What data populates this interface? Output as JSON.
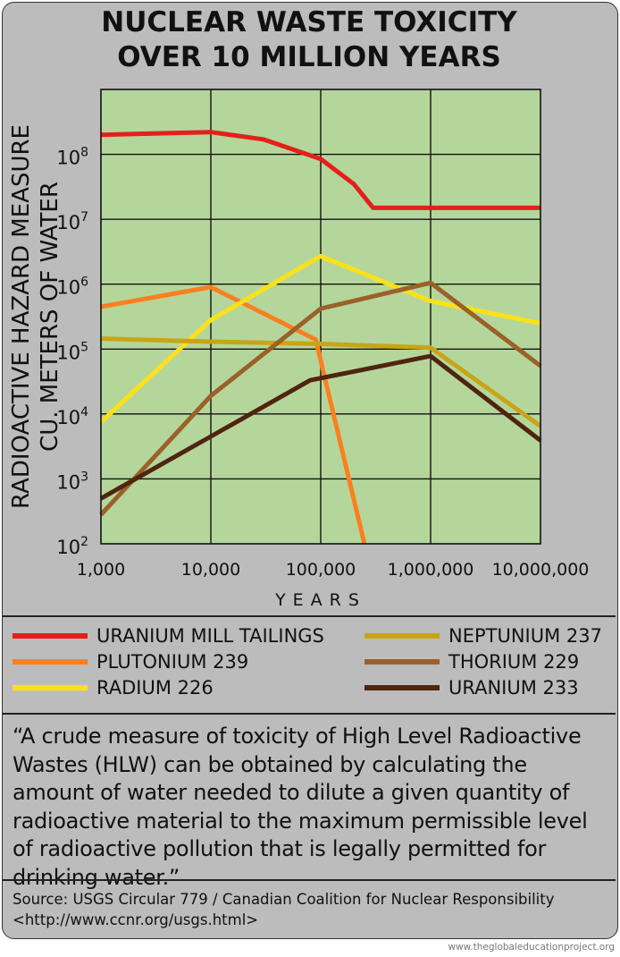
{
  "title_lines": [
    "NUCLEAR WASTE TOXICITY",
    "OVER 10 MILLION YEARS"
  ],
  "chart_data": {
    "type": "line",
    "title": "NUCLEAR WASTE TOXICITY OVER 10 MILLION YEARS",
    "xlabel": "YEARS",
    "ylabel_lines": [
      "RADIOACTIVE HAZARD MEASURE",
      "CU. METERS OF WATER"
    ],
    "x_scale": "log",
    "y_scale": "log",
    "xlim": [
      1000,
      10000000
    ],
    "ylim": [
      100,
      1000000000
    ],
    "x_ticks": [
      1000,
      10000,
      100000,
      1000000,
      10000000
    ],
    "x_tick_labels": [
      "1,000",
      "10,000",
      "100,000",
      "1,000,000",
      "10,000,000"
    ],
    "y_tick_exponents": [
      "2",
      "3",
      "4",
      "5",
      "6",
      "7",
      "8"
    ],
    "y_tick_base": "10",
    "grid": true,
    "plot_background": "#b5d69b",
    "series": [
      {
        "name": "URANIUM MILL TAILINGS",
        "color": "#e3211c",
        "points": [
          [
            1000,
            200000000
          ],
          [
            3000,
            210000000
          ],
          [
            10000,
            220000000
          ],
          [
            30000,
            170000000
          ],
          [
            100000,
            85000000
          ],
          [
            200000,
            35000000
          ],
          [
            300000,
            15000000
          ],
          [
            1000000,
            15000000
          ],
          [
            10000000,
            15000000
          ]
        ]
      },
      {
        "name": "PLUTONIUM 239",
        "color": "#ff7f1f",
        "points": [
          [
            1000,
            450000
          ],
          [
            10000,
            900000
          ],
          [
            90000,
            140000
          ],
          [
            250000,
            100
          ]
        ]
      },
      {
        "name": "RADIUM 226",
        "color": "#ffe11a",
        "points": [
          [
            1000,
            7500
          ],
          [
            10000,
            280000
          ],
          [
            100000,
            2700000
          ],
          [
            1000000,
            550000
          ],
          [
            10000000,
            250000
          ]
        ]
      },
      {
        "name": "NEPTUNIUM 237",
        "color": "#c8a418",
        "points": [
          [
            1000,
            145000
          ],
          [
            10000,
            130000
          ],
          [
            100000,
            120000
          ],
          [
            1000000,
            105000
          ],
          [
            10000000,
            6500
          ]
        ]
      },
      {
        "name": "THORIUM 229",
        "color": "#9a6128",
        "points": [
          [
            1000,
            280
          ],
          [
            10000,
            19000
          ],
          [
            100000,
            420000
          ],
          [
            1000000,
            1050000
          ],
          [
            10000000,
            55000
          ]
        ]
      },
      {
        "name": "URANIUM 233",
        "color": "#4f2510",
        "points": [
          [
            1000,
            500
          ],
          [
            10000,
            4500
          ],
          [
            80000,
            33000
          ],
          [
            1000000,
            78000
          ],
          [
            10000000,
            3900
          ]
        ]
      }
    ]
  },
  "legend": [
    {
      "label": "URANIUM MILL TAILINGS",
      "color": "#e3211c"
    },
    {
      "label": "PLUTONIUM 239",
      "color": "#ff7f1f"
    },
    {
      "label": "RADIUM 226",
      "color": "#ffe11a"
    },
    {
      "label": "NEPTUNIUM 237",
      "color": "#c8a418"
    },
    {
      "label": "THORIUM 229",
      "color": "#9a6128"
    },
    {
      "label": "URANIUM 233",
      "color": "#4f2510"
    }
  ],
  "quote": "“A crude measure of toxicity of High Level Radioactive Wastes (HLW) can be obtained by calculating the amount of water needed to dilute a given quantity of radioactive material to the maximum permissible level of radioactive pollution that is legally permitted for drinking water.”",
  "source": "Source: USGS Circular 779 / Canadian Coalition for Nuclear Responsibility <http://www.ccnr.org/usgs.html>",
  "footer": "www.theglobaleducationproject.org"
}
